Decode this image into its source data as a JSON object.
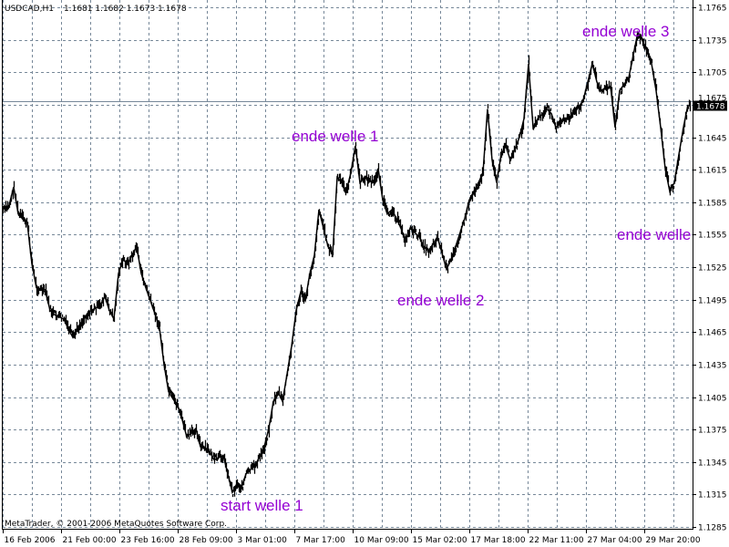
{
  "header": {
    "symbol": "USDCAD,H1",
    "ohlc": "1.1681 1.1682 1.1673 1.1678"
  },
  "copyright": "MetaTrader, © 2001-2006 MetaQuotes Software Corp.",
  "colors": {
    "background": "#ffffff",
    "grid": "#778899",
    "price_line": "#000000",
    "annotation": "#9400d3",
    "bid_line": "#778899",
    "bid_label_bg": "#000000"
  },
  "chart_data": {
    "type": "line",
    "title": "",
    "xlabel": "",
    "ylabel": "",
    "grid": true,
    "ylim": [
      1.1285,
      1.1765
    ],
    "y_ticks": [
      "1.1765",
      "1.1735",
      "1.1705",
      "1.1675",
      "1.1645",
      "1.1615",
      "1.1585",
      "1.1555",
      "1.1525",
      "1.1495",
      "1.1465",
      "1.1435",
      "1.1405",
      "1.1375",
      "1.1345",
      "1.1315",
      "1.1285"
    ],
    "x_ticks": [
      "16 Feb 2006",
      "21 Feb 00:00",
      "23 Feb 16:00",
      "28 Feb 09:00",
      "3 Mar 01:00",
      "7 Mar 17:00",
      "10 Mar 09:00",
      "15 Mar 02:00",
      "17 Mar 18:00",
      "22 Mar 11:00",
      "27 Mar 04:00",
      "29 Mar 20:00"
    ],
    "current_price": "1.1678",
    "series": [
      {
        "values": [
          1.1578,
          1.1582,
          1.1599,
          1.1574,
          1.157,
          1.1565,
          1.1528,
          1.1506,
          1.1504,
          1.1502,
          1.1485,
          1.1481,
          1.1479,
          1.1477,
          1.1468,
          1.146,
          1.1469,
          1.1475,
          1.1481,
          1.1485,
          1.1487,
          1.149,
          1.1498,
          1.1485,
          1.1477,
          1.1519,
          1.1532,
          1.1528,
          1.1536,
          1.1544,
          1.1519,
          1.1506,
          1.1494,
          1.1482,
          1.1469,
          1.1435,
          1.141,
          1.1403,
          1.1397,
          1.1384,
          1.1368,
          1.1372,
          1.1376,
          1.1359,
          1.1357,
          1.1355,
          1.1347,
          1.1349,
          1.1351,
          1.1334,
          1.1317,
          1.1325,
          1.1321,
          1.1334,
          1.1338,
          1.1342,
          1.135,
          1.1359,
          1.1376,
          1.1401,
          1.141,
          1.1401,
          1.1426,
          1.1452,
          1.1485,
          1.1502,
          1.1494,
          1.1519,
          1.1536,
          1.1578,
          1.1561,
          1.1544,
          1.1536,
          1.1608,
          1.1603,
          1.1595,
          1.1612,
          1.1637,
          1.1603,
          1.1608,
          1.1605,
          1.1603,
          1.1616,
          1.1587,
          1.1574,
          1.1578,
          1.157,
          1.1561,
          1.1549,
          1.1561,
          1.1557,
          1.1553,
          1.1544,
          1.154,
          1.1546,
          1.1553,
          1.1538,
          1.1523,
          1.1532,
          1.1544,
          1.1557,
          1.157,
          1.1587,
          1.1595,
          1.1603,
          1.1612,
          1.1671,
          1.1624,
          1.1603,
          1.1629,
          1.1637,
          1.1624,
          1.1634,
          1.1645,
          1.1662,
          1.1713,
          1.1654,
          1.1662,
          1.1666,
          1.1671,
          1.1667,
          1.1654,
          1.1658,
          1.1662,
          1.1664,
          1.1667,
          1.1673,
          1.1679,
          1.1696,
          1.1713,
          1.1696,
          1.1688,
          1.169,
          1.1692,
          1.1654,
          1.1688,
          1.1694,
          1.17,
          1.1721,
          1.1742,
          1.1734,
          1.1725,
          1.1713,
          1.1688,
          1.1654,
          1.1616,
          1.1595,
          1.1603,
          1.1629,
          1.1654,
          1.1675
        ]
      }
    ],
    "annotations": [
      "ende welle 3",
      "ende welle 1",
      "ende welle",
      "ende welle 2",
      "start welle 1"
    ]
  }
}
